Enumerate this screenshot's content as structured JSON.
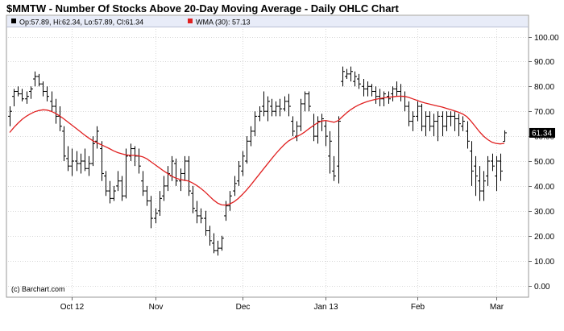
{
  "chart_data": {
    "type": "ohlc",
    "title": "$MMTW - Number Of Stocks Above 20-Day Moving Average - Daily OHLC Chart",
    "legend": {
      "ohlc": "Op:57.89, Hi:62.34, Lo:57.89, Cl:61.34",
      "wma": "WMA (30): 57.13",
      "wma_color": "#e02020"
    },
    "credit": "(c) Barchart.com",
    "ylim": [
      0,
      100
    ],
    "y_ticks": [
      "100.00",
      "90.00",
      "80.00",
      "70.00",
      "60.00",
      "50.00",
      "40.00",
      "30.00",
      "20.00",
      "10.00",
      "0.00"
    ],
    "x_ticks": [
      {
        "label": "Oct 12",
        "day": 15
      },
      {
        "label": "Nov",
        "day": 35
      },
      {
        "label": "Dec",
        "day": 56
      },
      {
        "label": "Jan 13",
        "day": 76
      },
      {
        "label": "Feb",
        "day": 98
      },
      {
        "label": "Mar",
        "day": 117
      }
    ],
    "last_value_label": "61.34",
    "grid": true,
    "series": [
      {
        "type": "ohlc",
        "bars": [
          [
            68,
            72,
            64,
            70
          ],
          [
            76,
            79,
            72,
            78
          ],
          [
            78,
            80,
            76,
            77
          ],
          [
            77,
            79,
            74,
            75
          ],
          [
            75,
            78,
            73,
            76
          ],
          [
            78,
            80,
            75,
            79
          ],
          [
            83,
            86,
            80,
            84
          ],
          [
            84,
            85,
            80,
            81
          ],
          [
            81,
            82,
            76,
            78
          ],
          [
            78,
            80,
            74,
            76
          ],
          [
            74,
            78,
            70,
            72
          ],
          [
            72,
            75,
            65,
            68
          ],
          [
            68,
            72,
            62,
            64
          ],
          [
            62,
            64,
            50,
            52
          ],
          [
            51,
            56,
            46,
            48
          ],
          [
            48,
            55,
            44,
            50
          ],
          [
            50,
            54,
            46,
            49
          ],
          [
            49,
            53,
            45,
            50
          ],
          [
            50,
            55,
            46,
            47
          ],
          [
            47,
            52,
            44,
            49
          ],
          [
            49,
            60,
            48,
            57
          ],
          [
            58,
            64,
            55,
            62
          ],
          [
            55,
            58,
            42,
            45
          ],
          [
            44,
            46,
            36,
            38
          ],
          [
            38,
            42,
            33,
            35
          ],
          [
            35,
            40,
            34,
            38
          ],
          [
            40,
            46,
            38,
            42
          ],
          [
            42,
            44,
            34,
            36
          ],
          [
            36,
            55,
            35,
            52
          ],
          [
            52,
            57,
            50,
            55
          ],
          [
            55,
            56,
            48,
            52
          ],
          [
            52,
            55,
            45,
            48
          ],
          [
            42,
            46,
            36,
            38
          ],
          [
            38,
            40,
            32,
            34
          ],
          [
            34,
            36,
            23,
            27
          ],
          [
            27,
            31,
            25,
            29
          ],
          [
            30,
            38,
            28,
            35
          ],
          [
            36,
            44,
            34,
            40
          ],
          [
            40,
            48,
            38,
            45
          ],
          [
            44,
            52,
            42,
            50
          ],
          [
            49,
            51,
            40,
            42
          ],
          [
            42,
            47,
            38,
            45
          ],
          [
            45,
            52,
            42,
            50
          ],
          [
            50,
            52,
            36,
            38
          ],
          [
            37,
            40,
            29,
            31
          ],
          [
            30,
            34,
            25,
            28
          ],
          [
            28,
            31,
            25,
            27
          ],
          [
            27,
            30,
            20,
            22
          ],
          [
            22,
            24,
            16,
            18
          ],
          [
            17,
            21,
            13,
            14
          ],
          [
            14,
            18,
            12,
            15
          ],
          [
            15,
            20,
            14,
            19
          ],
          [
            28,
            34,
            26,
            32
          ],
          [
            32,
            38,
            30,
            36
          ],
          [
            38,
            44,
            36,
            41
          ],
          [
            42,
            50,
            40,
            48
          ],
          [
            46,
            54,
            44,
            52
          ],
          [
            50,
            60,
            49,
            58
          ],
          [
            58,
            64,
            56,
            62
          ],
          [
            62,
            70,
            60,
            68
          ],
          [
            68,
            72,
            66,
            70
          ],
          [
            72,
            78,
            68,
            70
          ],
          [
            70,
            76,
            66,
            74
          ],
          [
            72,
            75,
            68,
            70
          ],
          [
            70,
            74,
            68,
            72
          ],
          [
            72,
            75,
            68,
            71
          ],
          [
            71,
            76,
            70,
            74
          ],
          [
            74,
            77,
            68,
            72
          ],
          [
            66,
            68,
            60,
            62
          ],
          [
            60,
            66,
            58,
            64
          ],
          [
            64,
            75,
            62,
            73
          ],
          [
            73,
            78,
            70,
            77
          ],
          [
            77,
            78,
            70,
            72
          ],
          [
            64,
            69,
            58,
            60
          ],
          [
            60,
            68,
            57,
            66
          ],
          [
            66,
            69,
            62,
            67
          ],
          [
            64,
            66,
            56,
            60
          ],
          [
            52,
            62,
            45,
            58
          ],
          [
            46,
            52,
            42,
            44
          ],
          [
            48,
            68,
            41,
            66
          ],
          [
            82,
            88,
            80,
            86
          ],
          [
            84,
            87,
            83,
            85
          ],
          [
            85,
            88,
            82,
            86
          ],
          [
            82,
            86,
            80,
            84
          ],
          [
            83,
            85,
            79,
            81
          ],
          [
            80,
            83,
            76,
            79
          ],
          [
            79,
            82,
            76,
            80
          ],
          [
            80,
            81,
            76,
            78
          ],
          [
            78,
            80,
            73,
            76
          ],
          [
            76,
            79,
            72,
            75
          ],
          [
            75,
            78,
            72,
            77
          ],
          [
            76,
            78,
            73,
            75
          ],
          [
            77,
            80,
            74,
            79
          ],
          [
            79,
            82,
            76,
            78
          ],
          [
            78,
            81,
            74,
            76
          ],
          [
            76,
            78,
            70,
            72
          ],
          [
            72,
            74,
            64,
            66
          ],
          [
            66,
            70,
            62,
            68
          ],
          [
            68,
            74,
            66,
            72
          ],
          [
            72,
            73,
            62,
            64
          ],
          [
            64,
            70,
            60,
            68
          ],
          [
            68,
            70,
            62,
            64
          ],
          [
            64,
            69,
            60,
            66
          ],
          [
            66,
            70,
            58,
            68
          ],
          [
            68,
            70,
            60,
            64
          ],
          [
            64,
            70,
            62,
            68
          ],
          [
            68,
            70,
            64,
            68
          ],
          [
            68,
            70,
            62,
            67
          ],
          [
            67,
            69,
            60,
            65
          ],
          [
            64,
            68,
            62,
            66
          ],
          [
            62,
            66,
            55,
            58
          ],
          [
            54,
            58,
            40,
            46
          ],
          [
            48,
            52,
            36,
            44
          ],
          [
            42,
            48,
            34,
            38
          ],
          [
            38,
            46,
            34,
            42
          ],
          [
            44,
            52,
            40,
            50
          ],
          [
            50,
            53,
            46,
            48
          ],
          [
            44,
            52,
            38,
            50
          ],
          [
            50,
            53,
            42,
            46
          ],
          [
            57.89,
            62.34,
            57.89,
            61.34
          ]
        ]
      },
      {
        "type": "line",
        "name": "WMA (30)",
        "values": [
          61.5,
          63.5,
          65.2,
          66.8,
          68.0,
          69.0,
          69.8,
          70.3,
          70.6,
          70.5,
          70.0,
          69.2,
          68.2,
          67.0,
          65.7,
          64.4,
          63.1,
          61.8,
          60.5,
          59.3,
          58.2,
          57.3,
          56.6,
          55.8,
          55.0,
          54.1,
          53.4,
          52.9,
          52.5,
          52.3,
          52.3,
          52.1,
          51.7,
          50.9,
          49.7,
          48.5,
          47.3,
          46.1,
          45.0,
          43.9,
          43.1,
          42.6,
          42.3,
          42.0,
          41.2,
          40.2,
          39.0,
          37.6,
          36.0,
          34.4,
          33.1,
          32.4,
          32.3,
          32.8,
          33.7,
          35.0,
          36.6,
          38.4,
          40.4,
          42.5,
          44.6,
          46.7,
          48.8,
          50.9,
          52.9,
          54.8,
          56.5,
          58.0,
          59.0,
          59.8,
          60.6,
          61.7,
          63.0,
          64.2,
          65.3,
          66.1,
          66.3,
          66.0,
          65.6,
          66.2,
          67.8,
          69.3,
          70.6,
          71.7,
          72.6,
          73.3,
          73.9,
          74.4,
          74.8,
          75.1,
          75.4,
          75.6,
          75.8,
          76.0,
          76.1,
          76.0,
          75.6,
          75.0,
          74.4,
          73.8,
          73.3,
          72.9,
          72.5,
          72.1,
          71.7,
          71.2,
          70.7,
          70.2,
          69.6,
          68.9,
          67.8,
          66.0,
          63.9,
          61.8,
          60.0,
          58.6,
          57.6,
          57.1,
          56.9,
          57.13
        ]
      }
    ]
  }
}
